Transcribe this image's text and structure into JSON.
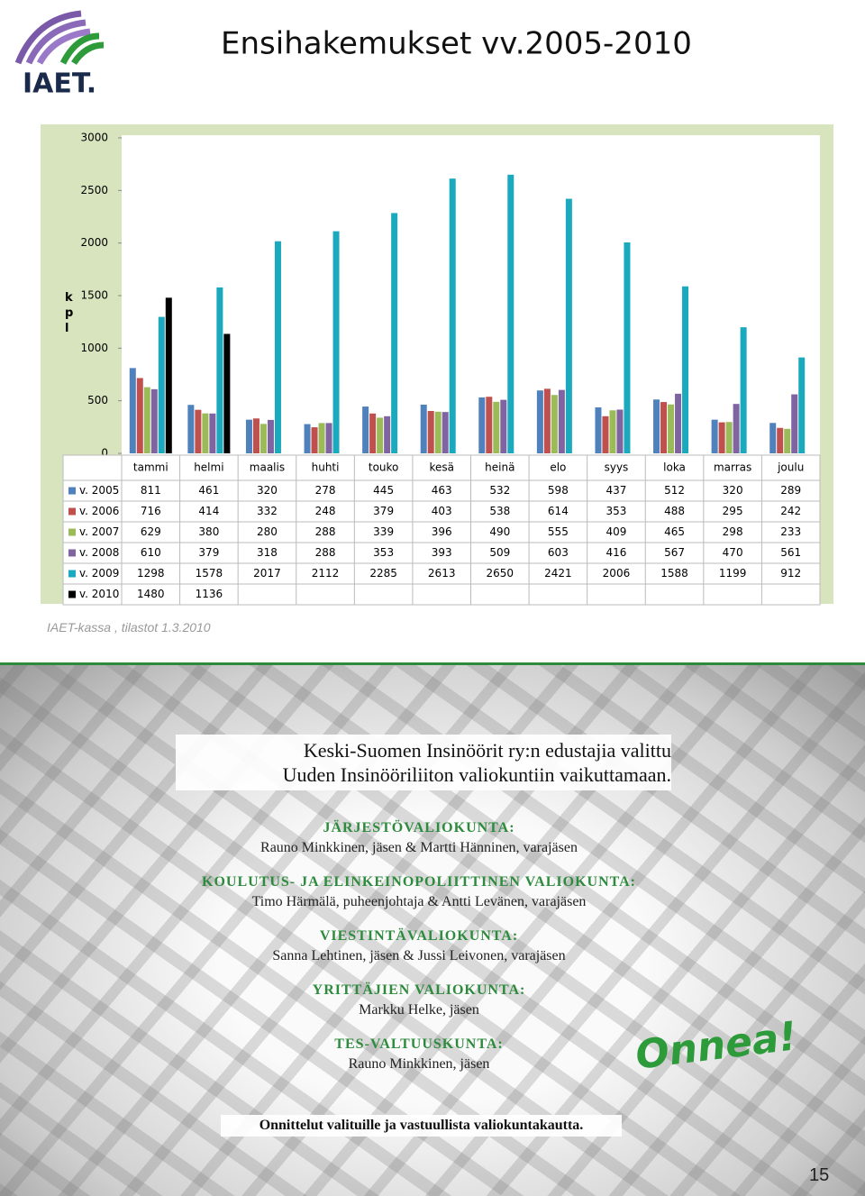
{
  "header": {
    "title": "Ensihakemukset vv.2005-2010",
    "logo": "IAET."
  },
  "chart_data": {
    "type": "bar",
    "y_label": "kpl",
    "categories": [
      "tammi",
      "helmi",
      "maalis",
      "huhti",
      "touko",
      "kesä",
      "heinä",
      "elo",
      "syys",
      "loka",
      "marras",
      "joulu"
    ],
    "series": [
      {
        "name": "v. 2005",
        "color": "#4f81bd",
        "values": [
          811,
          461,
          320,
          278,
          445,
          463,
          532,
          598,
          437,
          512,
          320,
          289
        ]
      },
      {
        "name": "v. 2006",
        "color": "#c0504d",
        "values": [
          716,
          414,
          332,
          248,
          379,
          403,
          538,
          614,
          353,
          488,
          295,
          242
        ]
      },
      {
        "name": "v. 2007",
        "color": "#9bbb59",
        "values": [
          629,
          380,
          280,
          288,
          339,
          396,
          490,
          555,
          409,
          465,
          298,
          233
        ]
      },
      {
        "name": "v. 2008",
        "color": "#8064a2",
        "values": [
          610,
          379,
          318,
          288,
          353,
          393,
          509,
          603,
          416,
          567,
          470,
          561
        ]
      },
      {
        "name": "v. 2009",
        "color": "#1ba9bd",
        "values": [
          1298,
          1578,
          2017,
          2112,
          2285,
          2613,
          2650,
          2421,
          2006,
          1588,
          1199,
          912
        ]
      },
      {
        "name": "v. 2010",
        "color": "#000000",
        "values": [
          1480,
          1136,
          null,
          null,
          null,
          null,
          null,
          null,
          null,
          null,
          null,
          null
        ]
      }
    ],
    "ylim": [
      0,
      3000
    ],
    "yticks": [
      0,
      500,
      1000,
      1500,
      2000,
      2500,
      3000
    ],
    "grid": false
  },
  "source": "IAET-kassa , tilastot 1.3.2010",
  "article": {
    "intro": [
      "Keski-Suomen Insinöörit ry:n edustajia valittu",
      "Uuden Insinööriliiton valiokuntiin vaikuttamaan."
    ],
    "committees": [
      {
        "heading": "JÄRJESTÖVALIOKUNTA:",
        "members": "Rauno Minkkinen, jäsen & Martti Hänninen, varajäsen"
      },
      {
        "heading": "KOULUTUS- JA ELINKEINOPOLIITTINEN VALIOKUNTA:",
        "members": "Timo Härmälä, puheenjohtaja & Antti Levänen, varajäsen"
      },
      {
        "heading": "VIESTINTÄVALIOKUNTA:",
        "members": "Sanna Lehtinen, jäsen & Jussi Leivonen, varajäsen"
      },
      {
        "heading": "YRITTÄJIEN VALIOKUNTA:",
        "members": "Markku Helke, jäsen"
      },
      {
        "heading": "TES-VALTUUSKUNTA:",
        "members": "Rauno Minkkinen, jäsen"
      }
    ],
    "closing": "Onnittelut valituille ja vastuullista valiokuntakautta."
  },
  "onnea": "Onnea!",
  "page_number": 15
}
